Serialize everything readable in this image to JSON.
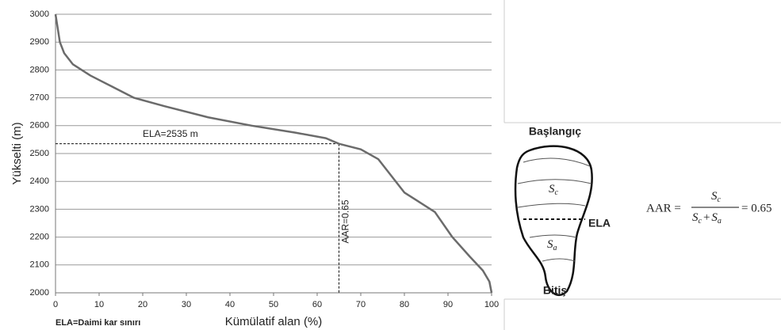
{
  "chart_data": {
    "type": "line",
    "x_label": "Kümülatif alan (%)",
    "y_label": "Yükselti (m)",
    "footnote": "ELA=Daimi kar sınırı",
    "x": [
      0,
      0.5,
      1,
      2,
      4,
      8,
      13,
      18,
      25,
      35,
      45,
      55,
      62,
      65,
      70,
      74,
      77,
      80,
      83,
      87,
      91,
      95,
      98,
      99.5,
      100
    ],
    "series": [
      {
        "color": "#6b6b6b",
        "values": [
          3000,
          2950,
          2900,
          2860,
          2820,
          2780,
          2740,
          2700,
          2670,
          2630,
          2600,
          2575,
          2555,
          2535,
          2515,
          2480,
          2420,
          2360,
          2330,
          2290,
          2200,
          2130,
          2080,
          2040,
          2000
        ]
      }
    ],
    "xlim": [
      0,
      100
    ],
    "xticks": [
      0,
      10,
      20,
      30,
      40,
      50,
      60,
      70,
      80,
      90,
      100
    ],
    "ylim": [
      2000,
      3000
    ],
    "yticks": [
      2000,
      2100,
      2200,
      2300,
      2400,
      2500,
      2600,
      2700,
      2800,
      2900,
      3000
    ],
    "grid": true,
    "reference_lines": [
      {
        "axis": "y",
        "value": 2535,
        "label": "ELA=2535 m"
      },
      {
        "axis": "x",
        "value": 65,
        "label": "AAR=0.65"
      }
    ]
  },
  "diagram": {
    "top_label": "Başlangıç",
    "ela_label": "ELA",
    "bottom_label": "Bitiş",
    "sc": [
      "S",
      "c"
    ],
    "sa": [
      "S",
      "a"
    ],
    "formula": {
      "lhs": "AAR =",
      "plus": "+",
      "rhs": "= 0.65"
    }
  }
}
